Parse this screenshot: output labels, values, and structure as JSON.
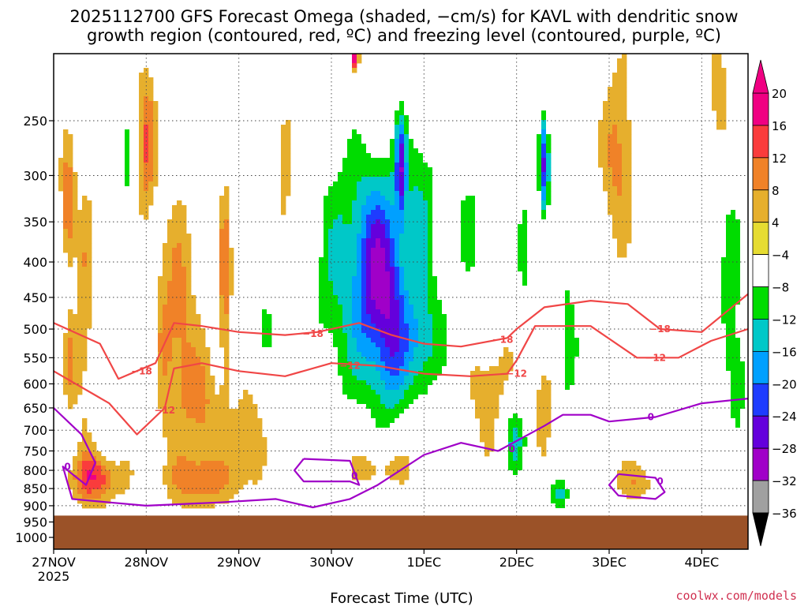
{
  "title_line1": "2025112700 GFS Forecast Omega (shaded, −cm/s) for KAVL with dendritic snow",
  "title_line2": "growth region (contoured, red, ºC) and freezing level (contoured, purple, ºC)",
  "xlabel": "Forecast Time (UTC)",
  "credit": "coolwx.com/models",
  "colors": {
    "dendritic": "#f04646",
    "freezing": "#a000c8",
    "ground": "#9b5228"
  },
  "chart_data": {
    "type": "heatmap",
    "title": "2025112700 GFS Forecast Omega (shaded, −cm/s) for KAVL with dendritic snow growth region (contoured, red, ºC) and freezing level (contoured, purple, ºC)",
    "xlabel": "Forecast Time (UTC)",
    "ylabel": "",
    "x_ticks": [
      "27NOV",
      "28NOV",
      "29NOV",
      "30NOV",
      "1DEC",
      "2DEC",
      "3DEC",
      "4DEC"
    ],
    "x_tick_sublabel": "2025",
    "x_range_days": [
      0,
      7.5
    ],
    "y_ticks_hpa": [
      250,
      300,
      350,
      400,
      450,
      500,
      550,
      600,
      650,
      700,
      750,
      800,
      850,
      900,
      950,
      1000
    ],
    "y_range_hpa": [
      200,
      1040
    ],
    "y_scale": "log-pressure",
    "ground_top_hpa": 930,
    "colorbar": {
      "bounds": [
        -36,
        -32,
        -28,
        -24,
        -20,
        -16,
        -12,
        -8,
        -4,
        4,
        8,
        12,
        16,
        20
      ],
      "tick_labels": [
        "20",
        "16",
        "12",
        "8",
        "4",
        "−4",
        "−8",
        "−12",
        "−16",
        "−20",
        "−24",
        "−28",
        "−32",
        "−36"
      ],
      "colors": [
        "#000000",
        "#a0a0a0",
        "#a000c8",
        "#6400dc",
        "#1e3cff",
        "#00a0ff",
        "#00c8c8",
        "#00dc00",
        "#ffffff",
        "#e6dc32",
        "#e6af2d",
        "#f08228",
        "#fa3c3c",
        "#f00082"
      ]
    },
    "omega_centers": [
      {
        "x": 0.15,
        "p": 340,
        "v": 13,
        "sx": 0.06,
        "sy": 0.15
      },
      {
        "x": 0.18,
        "p": 560,
        "v": 9,
        "sx": 0.07,
        "sy": 0.12
      },
      {
        "x": 0.45,
        "p": 820,
        "v": 15,
        "sx": 0.2,
        "sy": 0.06
      },
      {
        "x": 0.35,
        "p": 450,
        "v": 7,
        "sx": 0.06,
        "sy": 0.3
      },
      {
        "x": 1.0,
        "p": 270,
        "v": 12,
        "sx": 0.07,
        "sy": 0.18
      },
      {
        "x": 1.2,
        "p": 520,
        "v": 8,
        "sx": 0.12,
        "sy": 0.25
      },
      {
        "x": 1.4,
        "p": 480,
        "v": 7,
        "sx": 0.1,
        "sy": 0.3
      },
      {
        "x": 1.6,
        "p": 650,
        "v": 9,
        "sx": 0.12,
        "sy": 0.14
      },
      {
        "x": 1.6,
        "p": 830,
        "v": 10,
        "sx": 0.25,
        "sy": 0.06
      },
      {
        "x": 1.85,
        "p": 430,
        "v": 10,
        "sx": 0.05,
        "sy": 0.25
      },
      {
        "x": 2.1,
        "p": 720,
        "v": 8,
        "sx": 0.15,
        "sy": 0.12
      },
      {
        "x": 2.5,
        "p": 360,
        "v": 6,
        "sx": 0.06,
        "sy": 0.3
      },
      {
        "x": 3.5,
        "p": 790,
        "v": 9,
        "sx": 0.3,
        "sy": 0.06
      },
      {
        "x": 4.7,
        "p": 610,
        "v": 8,
        "sx": 0.2,
        "sy": 0.15
      },
      {
        "x": 5.1,
        "p": 500,
        "v": 9,
        "sx": 0.07,
        "sy": 0.25
      },
      {
        "x": 5.3,
        "p": 660,
        "v": 8,
        "sx": 0.08,
        "sy": 0.12
      },
      {
        "x": 6.1,
        "p": 280,
        "v": 10,
        "sx": 0.12,
        "sy": 0.2
      },
      {
        "x": 6.3,
        "p": 830,
        "v": 8,
        "sx": 0.15,
        "sy": 0.05
      },
      {
        "x": 7.2,
        "p": 250,
        "v": 8,
        "sx": 0.1,
        "sy": 0.18
      },
      {
        "x": 3.25,
        "p": 200,
        "v": 22,
        "sx": 0.03,
        "sy": 0.04
      },
      {
        "x": 0.6,
        "p": 640,
        "v": -7,
        "sx": 0.08,
        "sy": 0.1
      },
      {
        "x": 0.05,
        "p": 450,
        "v": -8,
        "sx": 0.06,
        "sy": 0.2
      },
      {
        "x": 0.8,
        "p": 300,
        "v": -8,
        "sx": 0.06,
        "sy": 0.25
      },
      {
        "x": 1.05,
        "p": 560,
        "v": -8,
        "sx": 0.05,
        "sy": 0.25
      },
      {
        "x": 2.3,
        "p": 440,
        "v": -8,
        "sx": 0.06,
        "sy": 0.3
      },
      {
        "x": 3.1,
        "p": 420,
        "v": -12,
        "sx": 0.25,
        "sy": 0.4
      },
      {
        "x": 3.45,
        "p": 420,
        "v": -20,
        "sx": 0.14,
        "sy": 0.25
      },
      {
        "x": 3.65,
        "p": 460,
        "v": -16,
        "sx": 0.12,
        "sy": 0.3
      },
      {
        "x": 3.75,
        "p": 290,
        "v": -18,
        "sx": 0.04,
        "sy": 0.12
      },
      {
        "x": 3.95,
        "p": 330,
        "v": -12,
        "sx": 0.15,
        "sy": 0.25
      },
      {
        "x": 3.95,
        "p": 530,
        "v": -14,
        "sx": 0.2,
        "sy": 0.15
      },
      {
        "x": 4.5,
        "p": 330,
        "v": -8,
        "sx": 0.2,
        "sy": 0.35
      },
      {
        "x": 5.3,
        "p": 290,
        "v": -24,
        "sx": 0.04,
        "sy": 0.12
      },
      {
        "x": 5.1,
        "p": 420,
        "v": -16,
        "sx": 0.08,
        "sy": 0.25
      },
      {
        "x": 5.0,
        "p": 720,
        "v": -14,
        "sx": 0.12,
        "sy": 0.1
      },
      {
        "x": 5.55,
        "p": 520,
        "v": -10,
        "sx": 0.1,
        "sy": 0.25
      },
      {
        "x": 5.45,
        "p": 870,
        "v": -12,
        "sx": 0.1,
        "sy": 0.04
      },
      {
        "x": 5.9,
        "p": 560,
        "v": -8,
        "sx": 0.08,
        "sy": 0.2
      },
      {
        "x": 6.6,
        "p": 350,
        "v": -8,
        "sx": 0.1,
        "sy": 0.3
      },
      {
        "x": 6.9,
        "p": 520,
        "v": -9,
        "sx": 0.1,
        "sy": 0.25
      },
      {
        "x": 7.3,
        "p": 400,
        "v": -10,
        "sx": 0.12,
        "sy": 0.3
      },
      {
        "x": 7.4,
        "p": 600,
        "v": -8,
        "sx": 0.1,
        "sy": 0.15
      }
    ],
    "contours": {
      "dendritic_18": [
        [
          0,
          490
        ],
        [
          0.5,
          525
        ],
        [
          0.7,
          590
        ],
        [
          1.1,
          560
        ],
        [
          1.3,
          490
        ],
        [
          1.6,
          495
        ],
        [
          2.0,
          505
        ],
        [
          2.5,
          510
        ],
        [
          2.85,
          505
        ],
        [
          3.3,
          490
        ],
        [
          3.65,
          510
        ],
        [
          4.0,
          525
        ],
        [
          4.4,
          530
        ],
        [
          4.9,
          515
        ],
        [
          5.0,
          500
        ],
        [
          5.3,
          465
        ],
        [
          5.8,
          455
        ],
        [
          6.2,
          460
        ],
        [
          6.55,
          500
        ],
        [
          7.0,
          505
        ],
        [
          7.5,
          445
        ]
      ],
      "dendritic_12": [
        [
          0,
          575
        ],
        [
          0.6,
          640
        ],
        [
          0.9,
          710
        ],
        [
          1.2,
          650
        ],
        [
          1.3,
          570
        ],
        [
          1.6,
          560
        ],
        [
          2.0,
          575
        ],
        [
          2.5,
          585
        ],
        [
          3.0,
          560
        ],
        [
          3.5,
          565
        ],
        [
          4.0,
          580
        ],
        [
          4.5,
          585
        ],
        [
          4.9,
          580
        ],
        [
          5.0,
          555
        ],
        [
          5.2,
          495
        ],
        [
          5.8,
          495
        ],
        [
          6.3,
          550
        ],
        [
          6.75,
          550
        ],
        [
          7.1,
          520
        ],
        [
          7.5,
          500
        ]
      ],
      "freezing_0_main": [
        [
          0,
          650
        ],
        [
          0.3,
          710
        ],
        [
          0.45,
          780
        ],
        [
          0.35,
          840
        ],
        [
          0.1,
          790
        ],
        [
          0.2,
          880
        ],
        [
          0.6,
          890
        ],
        [
          1.0,
          900
        ],
        [
          1.8,
          890
        ],
        [
          2.4,
          880
        ],
        [
          2.8,
          905
        ],
        [
          3.2,
          880
        ],
        [
          3.5,
          840
        ],
        [
          4.0,
          760
        ],
        [
          4.4,
          730
        ],
        [
          4.8,
          750
        ],
        [
          5.3,
          690
        ],
        [
          5.5,
          665
        ],
        [
          5.8,
          665
        ],
        [
          6.0,
          680
        ],
        [
          6.5,
          670
        ],
        [
          7.0,
          640
        ],
        [
          7.5,
          630
        ]
      ],
      "freezing_0_loop_a": [
        [
          2.7,
          770
        ],
        [
          3.2,
          775
        ],
        [
          3.3,
          840
        ],
        [
          3.2,
          830
        ],
        [
          2.7,
          830
        ],
        [
          2.6,
          800
        ],
        [
          2.7,
          770
        ]
      ],
      "freezing_0_loop_b": [
        [
          6.1,
          810
        ],
        [
          6.5,
          820
        ],
        [
          6.6,
          860
        ],
        [
          6.5,
          880
        ],
        [
          6.1,
          870
        ],
        [
          6.0,
          840
        ],
        [
          6.1,
          810
        ]
      ]
    }
  }
}
